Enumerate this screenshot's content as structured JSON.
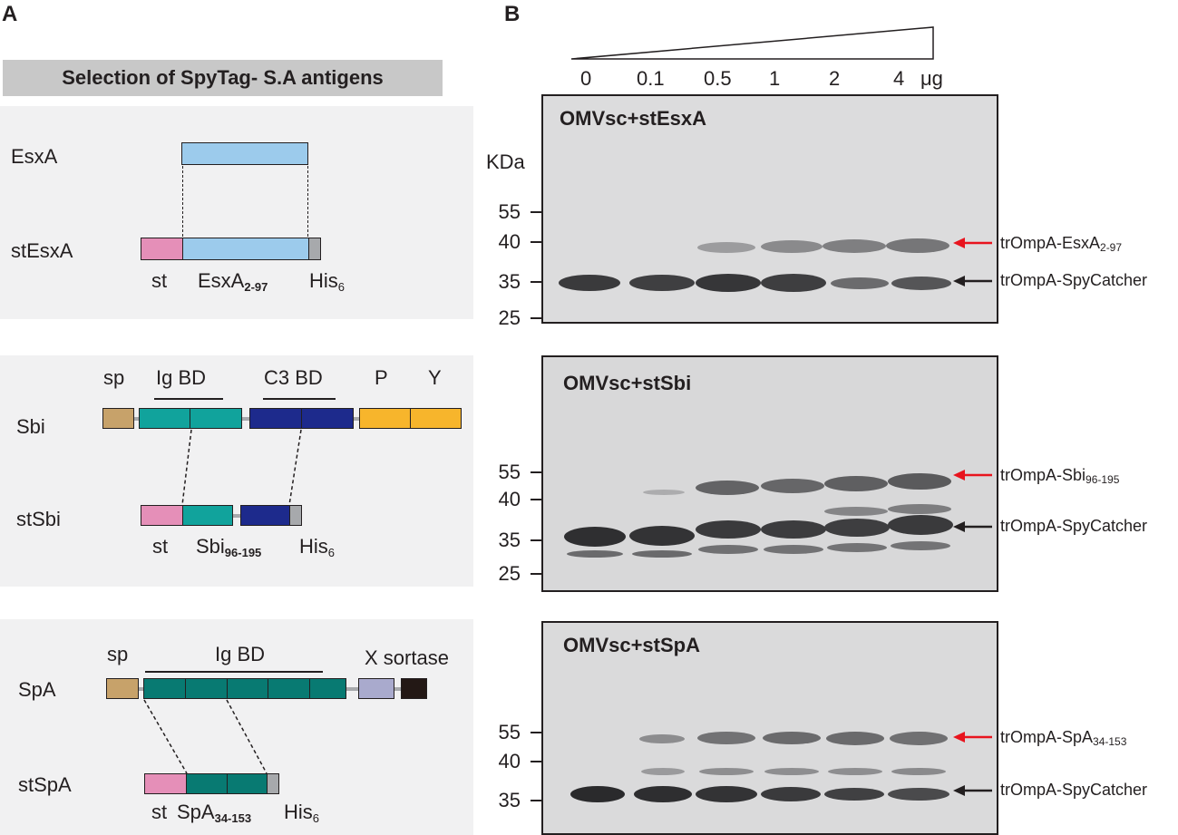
{
  "panels": {
    "a": "A",
    "b": "B"
  },
  "selection_title": "Selection of SpyTag- S.A antigens",
  "esxa_box": {
    "full_name": "EsxA",
    "construct_name": "stEsxA",
    "st": "st",
    "fragment": "EsxA",
    "fragment_range": "2-97",
    "his": "His",
    "his_sub": "6"
  },
  "sbi_box": {
    "full_name": "Sbi",
    "construct_name": "stSbi",
    "sp": "sp",
    "ig_bd": "Ig BD",
    "c3_bd": "C3 BD",
    "p": "P",
    "y": "Y",
    "st": "st",
    "fragment": "Sbi",
    "fragment_range": "96-195",
    "his": "His",
    "his_sub": "6"
  },
  "spa_box": {
    "full_name": "SpA",
    "construct_name": "stSpA",
    "sp": "sp",
    "ig_bd": "Ig BD",
    "x_sortase": "X sortase",
    "st": "st",
    "fragment": "SpA",
    "fragment_range": "34-153",
    "his": "His",
    "his_sub": "6"
  },
  "lanes": [
    "0",
    "0.1",
    "0.5",
    "1",
    "2",
    "4",
    "μg"
  ],
  "kda_label": "KDa",
  "gels": [
    {
      "title": "OMVsc+stEsxA",
      "markers": [
        "55",
        "40",
        "35",
        "25"
      ],
      "antigen_label": "trOmpA-EsxA",
      "antigen_range": "2-97",
      "carrier_label": "trOmpA-SpyCatcher"
    },
    {
      "title": "OMVsc+stSbi",
      "markers": [
        "55",
        "40",
        "35",
        "25"
      ],
      "antigen_label": "trOmpA-Sbi",
      "antigen_range": "96-195",
      "carrier_label": "trOmpA-SpyCatcher"
    },
    {
      "title": "OMVsc+stSpA",
      "markers": [
        "55",
        "40",
        "35"
      ],
      "antigen_label": "trOmpA-SpA",
      "antigen_range": "34-153",
      "carrier_label": "trOmpA-SpyCatcher"
    }
  ],
  "colors": {
    "st": "#e58fb8",
    "esxa": "#9ccbec",
    "his": "#a7a9ac",
    "sp": "#c7a26a",
    "ig": "#11a39c",
    "c3": "#1d2a8c",
    "py": "#f7b52c",
    "spa_ig": "#087a72",
    "x": "#a9aacd",
    "sortase": "#231815",
    "red_arrow": "#e8141e",
    "gel_bg": "#d9d9da"
  }
}
